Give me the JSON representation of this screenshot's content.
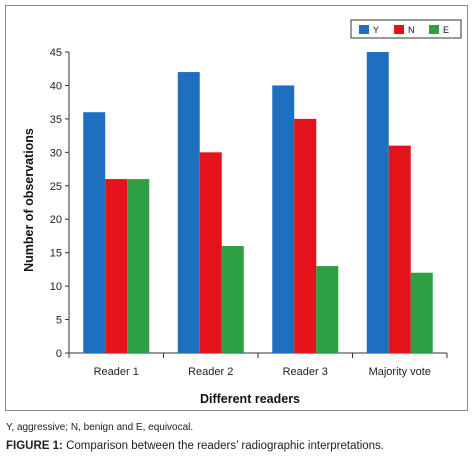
{
  "chart_data": {
    "type": "bar",
    "categories": [
      "Reader 1",
      "Reader 2",
      "Reader 3",
      "Majority vote"
    ],
    "series": [
      {
        "name": "Y",
        "values": [
          36,
          42,
          40,
          45
        ],
        "color": "#1f6fc0"
      },
      {
        "name": "N",
        "values": [
          26,
          30,
          35,
          31
        ],
        "color": "#e3121b"
      },
      {
        "name": "E",
        "values": [
          26,
          16,
          13,
          12
        ],
        "color": "#2ea043"
      }
    ],
    "xlabel": "Different readers",
    "ylabel": "Number of observations",
    "ylim": [
      0,
      45
    ],
    "yticks": [
      0,
      5,
      10,
      15,
      20,
      25,
      30,
      35,
      40,
      45
    ],
    "grid": false,
    "legend_position": "top-right"
  },
  "note": "Y, aggressive; N, benign and E, equivocal.",
  "caption": {
    "label": "FIGURE 1:",
    "text": " Comparison between the readers’ radiographic interpretations."
  }
}
